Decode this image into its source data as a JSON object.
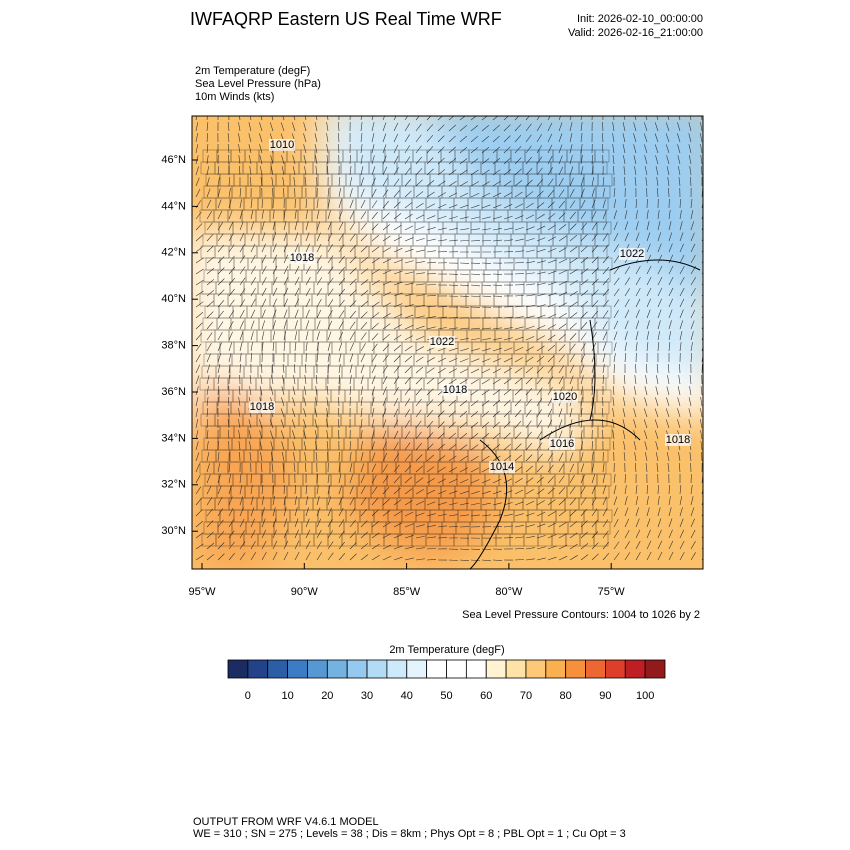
{
  "header": {
    "title": "IWFAQRP Eastern US Real Time WRF",
    "init": "Init: 2026-02-10_00:00:00",
    "valid": "Valid: 2026-02-16_21:00:00"
  },
  "fields": [
    "2m Temperature   (degF)",
    "Sea Level Pressure   (hPa)",
    "10m Winds   (kts)"
  ],
  "map": {
    "lat_labels": [
      "46°N",
      "44°N",
      "42°N",
      "40°N",
      "38°N",
      "36°N",
      "34°N",
      "32°N",
      "30°N"
    ],
    "lon_labels": [
      "95°W",
      "90°W",
      "85°W",
      "80°W",
      "75°W"
    ],
    "contour_labels": [
      "1010",
      "1018",
      "1022",
      "1022",
      "1018",
      "1018",
      "1020",
      "1016",
      "1014",
      "1018"
    ],
    "contour_note": "Sea Level Pressure Contours: 1004 to 1026 by 2"
  },
  "colorbar": {
    "title": "2m Temperature  (degF)",
    "limits": [
      -5,
      105
    ],
    "ticks": [
      0,
      10,
      20,
      30,
      40,
      50,
      60,
      70,
      80,
      90,
      100
    ],
    "colors": [
      "#1b2c62",
      "#22428a",
      "#2c5ea8",
      "#3c7cc4",
      "#5598d4",
      "#74b2e2",
      "#95c9ef",
      "#b2dcf6",
      "#cde9fa",
      "#e4f4fd",
      "#ffffff",
      "#ffffff",
      "#ffffff",
      "#fff3d2",
      "#fde3a6",
      "#fdc878",
      "#fbb04f",
      "#f7903c",
      "#ec6731",
      "#dd3f2b",
      "#bf1f24",
      "#931a1c"
    ]
  },
  "footer": {
    "line1": "OUTPUT FROM WRF V4.6.1 MODEL",
    "line2": "WE = 310 ; SN = 275 ; Levels = 38 ; Dis = 8km ; Phys Opt = 8 ; PBL Opt = 1 ; Cu Opt = 3"
  }
}
